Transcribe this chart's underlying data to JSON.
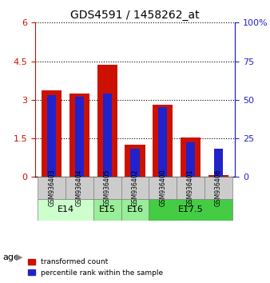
{
  "title": "GDS4591 / 1458262_at",
  "samples": [
    "GSM936403",
    "GSM936404",
    "GSM936405",
    "GSM936402",
    "GSM936400",
    "GSM936401",
    "GSM936406"
  ],
  "red_values": [
    3.35,
    3.25,
    4.35,
    1.25,
    2.8,
    1.52,
    0.05
  ],
  "blue_values_pct": [
    53.0,
    52.0,
    54.0,
    18.0,
    45.0,
    22.5,
    18.0
  ],
  "age_groups": [
    {
      "label": "E14",
      "start": 0,
      "end": 2,
      "color": "#ccffcc"
    },
    {
      "label": "E15",
      "start": 2,
      "end": 3,
      "color": "#99ee99"
    },
    {
      "label": "E16",
      "start": 3,
      "end": 4,
      "color": "#99ee99"
    },
    {
      "label": "E17.5",
      "start": 4,
      "end": 7,
      "color": "#44cc44"
    }
  ],
  "ylim_left": [
    0,
    6
  ],
  "ylim_right": [
    0,
    100
  ],
  "yticks_left": [
    0,
    1.5,
    3.0,
    4.5,
    6.0
  ],
  "yticks_right": [
    0,
    25,
    50,
    75,
    100
  ],
  "ytick_labels_left": [
    "0",
    "1.5",
    "3",
    "4.5",
    "6"
  ],
  "ytick_labels_right": [
    "0",
    "25",
    "50",
    "75",
    "100%"
  ],
  "red_color": "#cc1100",
  "blue_color": "#2222cc",
  "bar_width": 0.4,
  "sample_bg_color": "#cccccc",
  "legend_red": "transformed count",
  "legend_blue": "percentile rank within the sample",
  "xlabel_age": "age"
}
